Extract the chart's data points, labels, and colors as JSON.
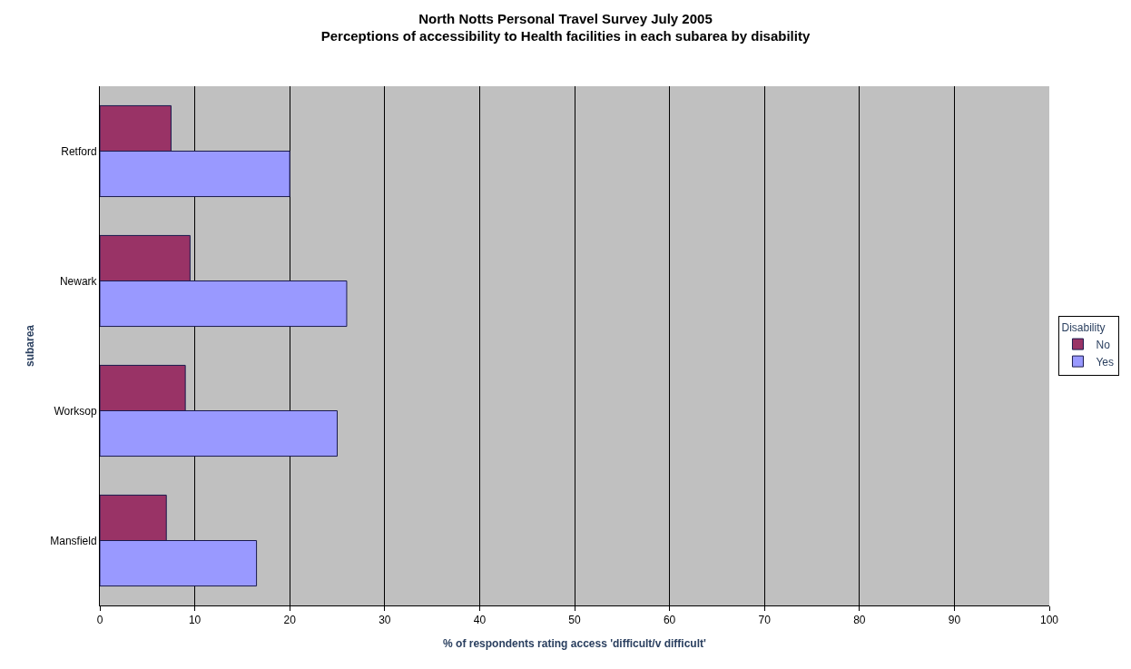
{
  "chart_data": {
    "type": "bar",
    "orientation": "horizontal",
    "title": "North Notts Personal Travel Survey July 2005",
    "subtitle": "Perceptions of accessibility to Health facilities in each subarea by disability",
    "xlabel": "% of respondents rating access 'difficult/v difficult'",
    "ylabel": "subarea",
    "legend_title": "Disability",
    "categories": [
      "Retford",
      "Newark",
      "Worksop",
      "Mansfield"
    ],
    "series": [
      {
        "name": "No",
        "color": "#993366",
        "values": [
          7.5,
          9.5,
          9,
          7
        ]
      },
      {
        "name": "Yes",
        "color": "#9999ff",
        "values": [
          20,
          26,
          25,
          16.5
        ]
      }
    ],
    "xlim": [
      0,
      100
    ],
    "xticks": [
      0,
      10,
      20,
      30,
      40,
      50,
      60,
      70,
      80,
      90,
      100
    ],
    "grid": "x",
    "legend": "right"
  }
}
